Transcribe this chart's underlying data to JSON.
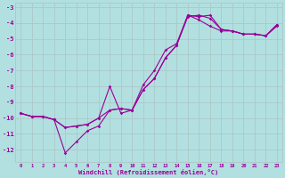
{
  "xlabel": "Windchill (Refroidissement éolien,°C)",
  "background_color": "#b2e0e0",
  "grid_color": "#c8dede",
  "line_color": "#990099",
  "x_ticks": [
    0,
    1,
    2,
    3,
    4,
    5,
    6,
    7,
    8,
    9,
    10,
    11,
    12,
    13,
    14,
    15,
    16,
    17,
    18,
    19,
    20,
    21,
    22,
    23
  ],
  "y_ticks": [
    -12,
    -11,
    -10,
    -9,
    -8,
    -7,
    -6,
    -5,
    -4,
    -3
  ],
  "ylim": [
    -12.8,
    -2.7
  ],
  "xlim": [
    -0.5,
    23.5
  ],
  "line1_x": [
    0,
    1,
    2,
    3,
    4,
    5,
    6,
    7,
    8,
    9,
    10,
    11,
    12,
    13,
    14,
    15,
    16,
    17,
    18,
    19,
    20,
    21,
    22,
    23
  ],
  "line1_y": [
    -9.7,
    -9.9,
    -9.9,
    -10.1,
    -12.2,
    -11.5,
    -10.8,
    -10.5,
    -9.5,
    -9.4,
    -9.5,
    -8.2,
    -7.5,
    -6.2,
    -5.4,
    -3.6,
    -3.5,
    -3.7,
    -4.4,
    -4.5,
    -4.7,
    -4.7,
    -4.8,
    -4.2
  ],
  "line2_x": [
    0,
    1,
    2,
    3,
    4,
    5,
    6,
    7,
    8,
    9,
    10,
    11,
    12,
    13,
    14,
    15,
    16,
    17,
    18,
    19,
    20,
    21,
    22,
    23
  ],
  "line2_y": [
    -9.7,
    -9.9,
    -9.9,
    -10.1,
    -10.6,
    -10.5,
    -10.4,
    -10.0,
    -9.5,
    -9.4,
    -9.5,
    -8.2,
    -7.5,
    -6.2,
    -5.4,
    -3.5,
    -3.6,
    -3.5,
    -4.4,
    -4.5,
    -4.7,
    -4.7,
    -4.8,
    -4.1
  ],
  "line3_x": [
    0,
    1,
    2,
    3,
    4,
    5,
    6,
    7,
    8,
    9,
    10,
    11,
    12,
    13,
    14,
    15,
    16,
    17,
    18,
    19,
    20,
    21,
    22,
    23
  ],
  "line3_y": [
    -9.7,
    -9.9,
    -9.9,
    -10.1,
    -10.6,
    -10.5,
    -10.4,
    -10.0,
    -8.0,
    -9.7,
    -9.5,
    -7.9,
    -7.0,
    -5.7,
    -5.3,
    -3.5,
    -3.8,
    -4.2,
    -4.5,
    -4.5,
    -4.7,
    -4.7,
    -4.8,
    -4.1
  ]
}
